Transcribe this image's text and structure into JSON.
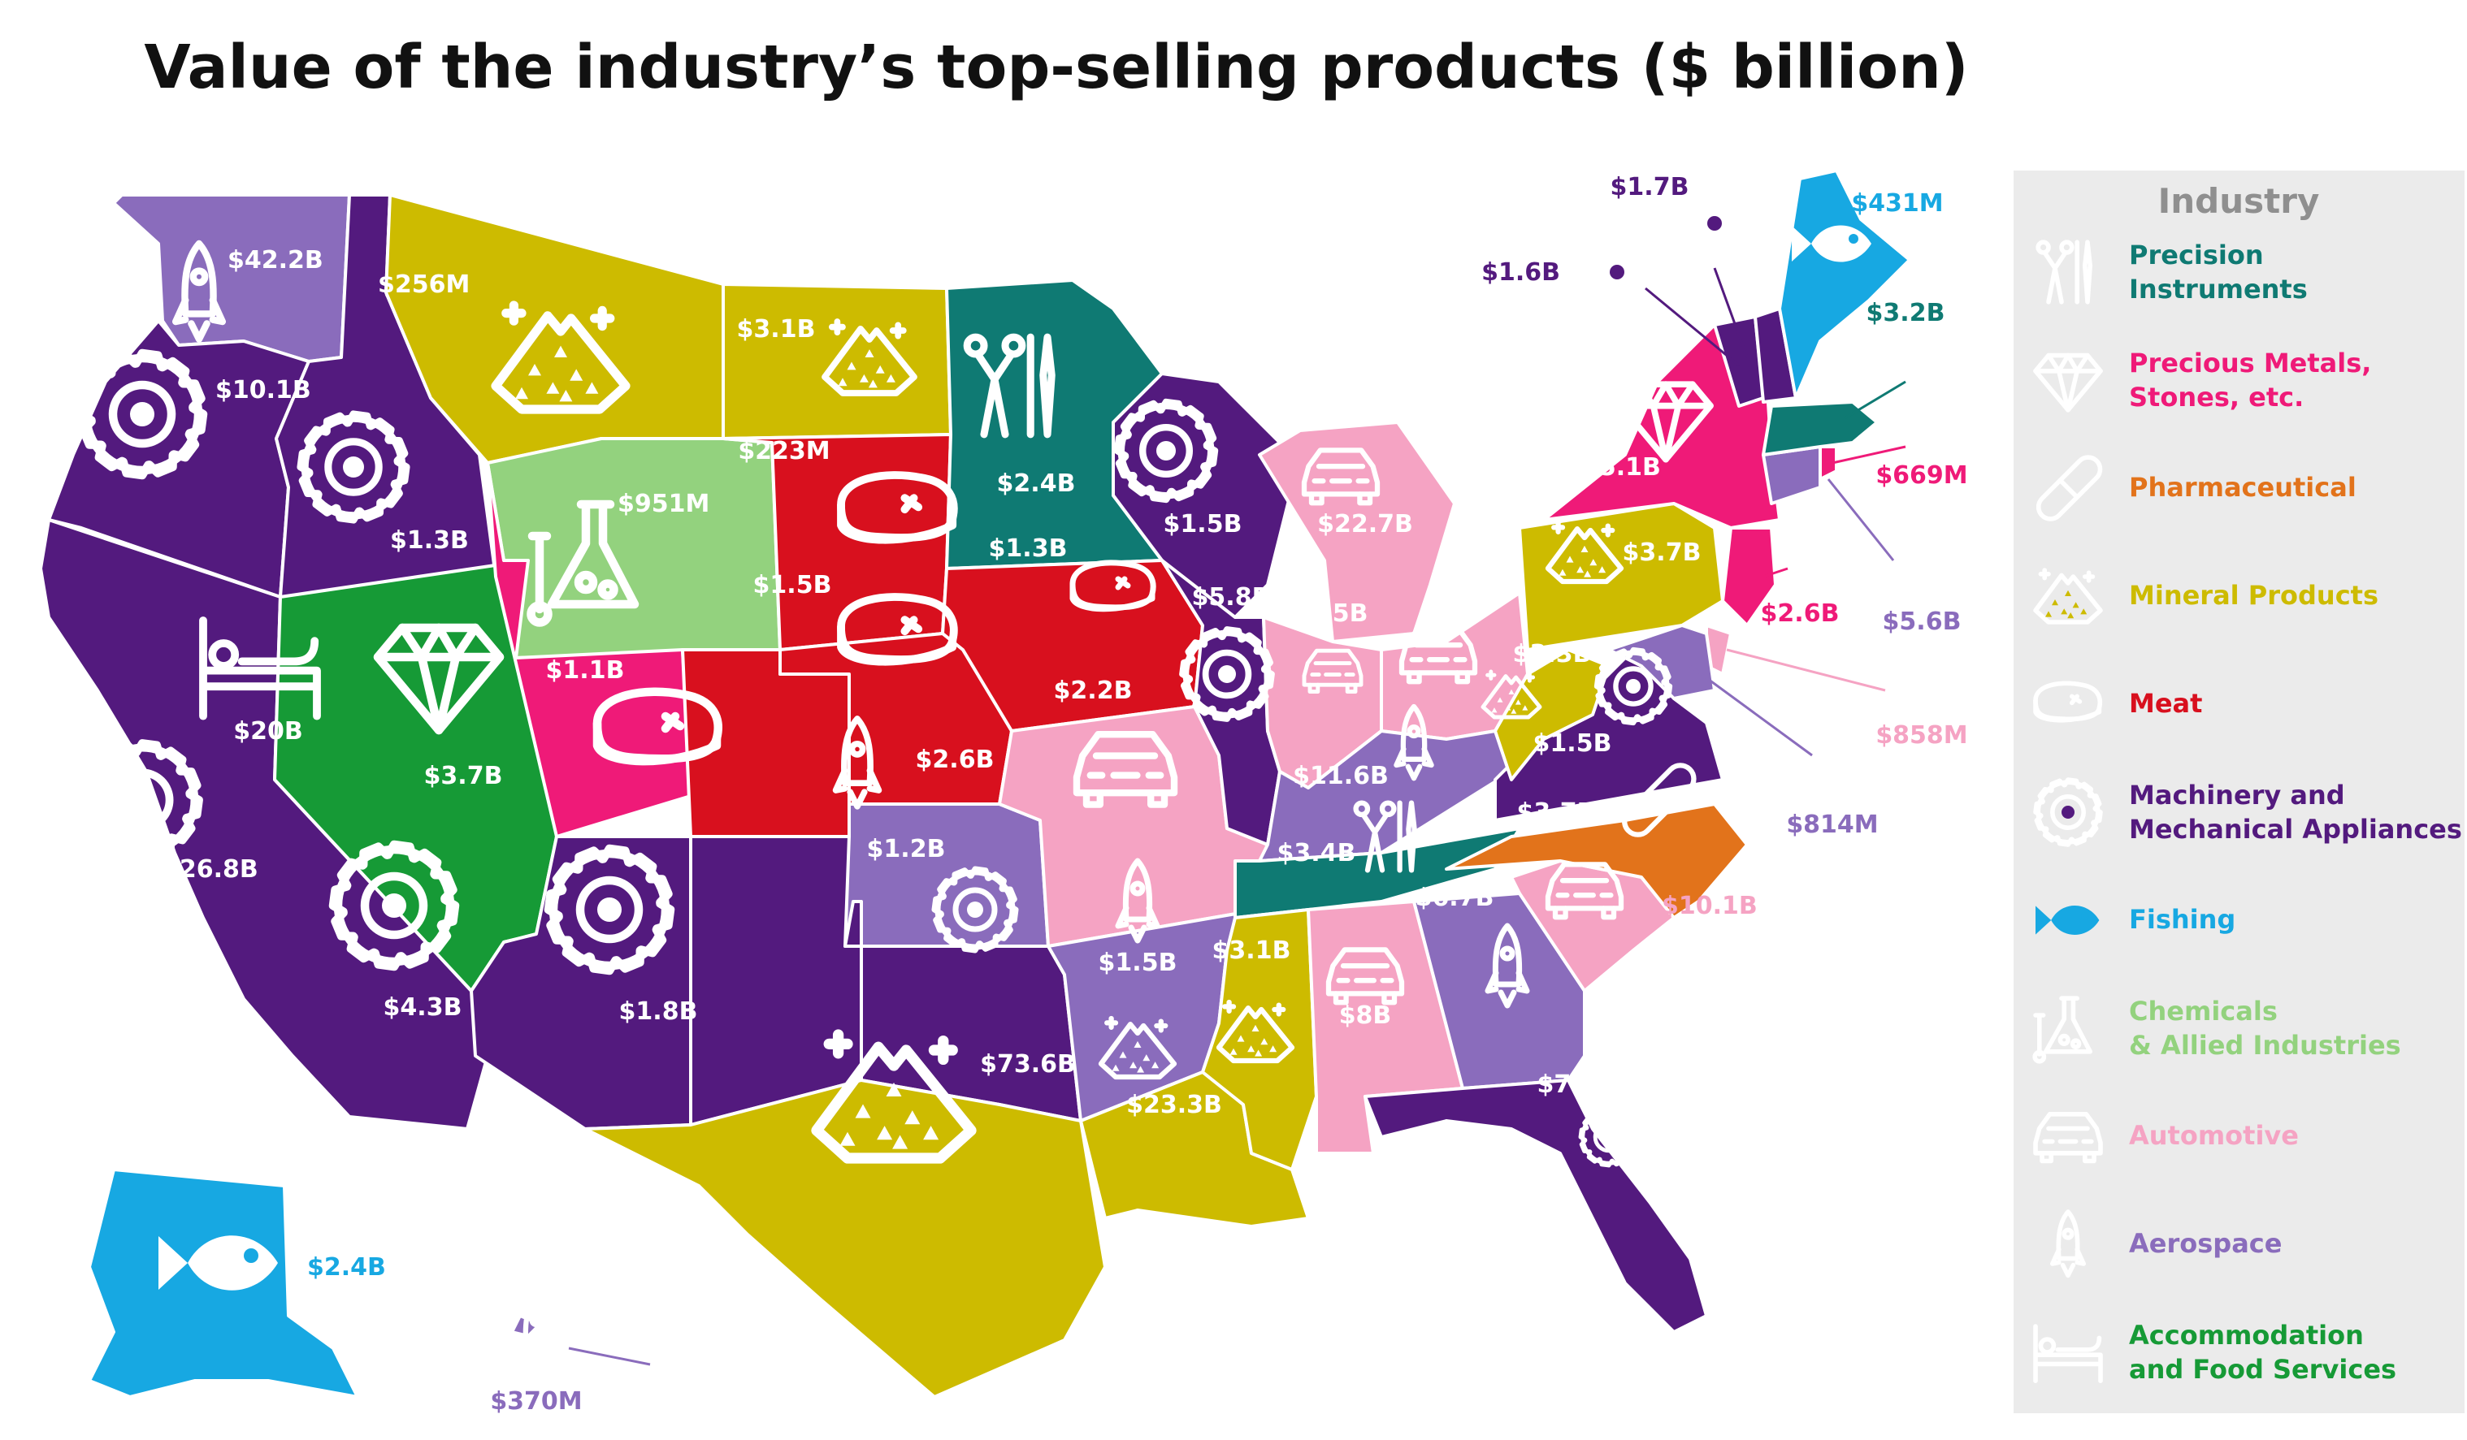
{
  "title": "Value of the industry’s top-selling products ($ billion)",
  "colors": {
    "Precision Instruments": "#0f7a73",
    "Precious Metals, Stones, etc.": "#ef1a78",
    "Pharmaceutical": "#e2731b",
    "Mineral Products": "#cdbb00",
    "Meat": "#d8101e",
    "Machinery and Mechanical Appliances": "#531a7e",
    "Fishing": "#17a8e2",
    "Chemicals & Allied Industries": "#93d27e",
    "Automotive": "#f5a3c3",
    "Aerospace": "#8a6cbc",
    "Accommodation and Food Services": "#169a36"
  },
  "legend": {
    "heading": "Industry",
    "items": [
      {
        "industry": "Precision Instruments",
        "lines": [
          "Precision",
          "Instruments"
        ],
        "icon": "surgical-tools-icon"
      },
      {
        "industry": "Precious Metals, Stones, etc.",
        "lines": [
          "Precious Metals,",
          "Stones, etc."
        ],
        "icon": "diamond-icon"
      },
      {
        "industry": "Pharmaceutical",
        "lines": [
          "Pharmaceutical"
        ],
        "icon": "pill-icon"
      },
      {
        "industry": "Mineral Products",
        "lines": [
          "Mineral Products"
        ],
        "icon": "mineral-pile-icon"
      },
      {
        "industry": "Meat",
        "lines": [
          "Meat"
        ],
        "icon": "steak-icon"
      },
      {
        "industry": "Machinery and Mechanical Appliances",
        "lines": [
          "Machinery and",
          "Mechanical Appliances"
        ],
        "icon": "gear-icon"
      },
      {
        "industry": "Fishing",
        "lines": [
          "Fishing"
        ],
        "icon": "fish-icon"
      },
      {
        "industry": "Chemicals & Allied Industries",
        "lines": [
          "Chemicals",
          "& Allied Industries"
        ],
        "icon": "flask-icon"
      },
      {
        "industry": "Automotive",
        "lines": [
          "Automotive"
        ],
        "icon": "car-icon"
      },
      {
        "industry": "Aerospace",
        "lines": [
          "Aerospace"
        ],
        "icon": "rocket-icon"
      },
      {
        "industry": "Accommodation and Food Services",
        "lines": [
          "Accommodation",
          "and Food Services"
        ],
        "icon": "bed-icon"
      }
    ]
  },
  "states": [
    {
      "id": "wa",
      "industry": "Aerospace",
      "value": "$42.2B",
      "icon": "rocket-icon"
    },
    {
      "id": "or",
      "industry": "Machinery and Mechanical Appliances",
      "value": "$10.1B",
      "icon": "gear-icon"
    },
    {
      "id": "ca",
      "industry": "Machinery and Mechanical Appliances",
      "value": "$26.8B",
      "icon": "gear-icon"
    },
    {
      "id": "id",
      "industry": "Machinery and Mechanical Appliances",
      "value": "$1.3B",
      "icon": "gear-icon"
    },
    {
      "id": "nv",
      "industry": "Accommodation and Food Services",
      "value": "$20B",
      "icon": "bed-icon"
    },
    {
      "id": "mt",
      "industry": "Mineral Products",
      "value": "$256M",
      "icon": "mineral-pile-icon"
    },
    {
      "id": "wy",
      "industry": "Chemicals & Allied Industries",
      "value": "$951M",
      "icon": "flask-icon"
    },
    {
      "id": "ut",
      "industry": "Precious Metals, Stones, etc.",
      "value": "$3.7B",
      "icon": "diamond-icon"
    },
    {
      "id": "az",
      "industry": "Machinery and Mechanical Appliances",
      "value": "$4.3B",
      "icon": "gear-icon"
    },
    {
      "id": "co",
      "industry": "Meat",
      "value": "$1.1B",
      "icon": "steak-icon"
    },
    {
      "id": "nm",
      "industry": "Machinery and Mechanical Appliances",
      "value": "$1.8B",
      "icon": "gear-icon"
    },
    {
      "id": "nd",
      "industry": "Mineral Products",
      "value": "$3.1B",
      "icon": "mineral-pile-icon"
    },
    {
      "id": "sd",
      "industry": "Meat",
      "value": "$223M",
      "icon": "steak-icon"
    },
    {
      "id": "ne",
      "industry": "Meat",
      "value": "$1.5B",
      "icon": "steak-icon"
    },
    {
      "id": "ks",
      "industry": "Aerospace",
      "value": "$2.6B",
      "icon": "rocket-icon"
    },
    {
      "id": "ok",
      "industry": "Machinery and Mechanical Appliances",
      "value": "$1.2B",
      "icon": "gear-icon"
    },
    {
      "id": "tx",
      "industry": "Mineral Products",
      "value": "$73.6B",
      "icon": "mineral-pile-icon"
    },
    {
      "id": "mn",
      "industry": "Precision Instruments",
      "value": "$2.4B",
      "icon": "surgical-tools-icon"
    },
    {
      "id": "ia",
      "industry": "Meat",
      "value": "$1.3B",
      "icon": "steak-icon"
    },
    {
      "id": "mo",
      "industry": "Automotive",
      "value": "$2.2B",
      "icon": "car-icon"
    },
    {
      "id": "ar",
      "industry": "Aerospace",
      "value": "$1.5B",
      "icon": "rocket-icon"
    },
    {
      "id": "la",
      "industry": "Mineral Products",
      "value": "$23.3B",
      "icon": "mineral-pile-icon"
    },
    {
      "id": "wi",
      "industry": "Machinery and Mechanical Appliances",
      "value": "$1.5B",
      "icon": "gear-icon"
    },
    {
      "id": "il",
      "industry": "Machinery and Mechanical Appliances",
      "value": "$5.8B",
      "icon": "gear-icon"
    },
    {
      "id": "mi",
      "industry": "Automotive",
      "value": "$22.7B",
      "icon": "car-icon"
    },
    {
      "id": "in",
      "industry": "Automotive",
      "value": "$7.5B",
      "icon": "car-icon"
    },
    {
      "id": "oh",
      "industry": "Automotive",
      "value": "$6B",
      "icon": "car-icon"
    },
    {
      "id": "ky",
      "industry": "Aerospace",
      "value": "$11.6B",
      "icon": "rocket-icon"
    },
    {
      "id": "tn",
      "industry": "Precision Instruments",
      "value": "$3.4B",
      "icon": "surgical-tools-icon"
    },
    {
      "id": "ms",
      "industry": "Mineral Products",
      "value": "$3.1B",
      "icon": "mineral-pile-icon"
    },
    {
      "id": "al",
      "industry": "Automotive",
      "value": "$8B",
      "icon": "car-icon"
    },
    {
      "id": "ga",
      "industry": "Aerospace",
      "value": "$6.7B",
      "icon": "rocket-icon"
    },
    {
      "id": "fl",
      "industry": "Machinery and Mechanical Appliances",
      "value": "$7.6B",
      "icon": "gear-icon"
    },
    {
      "id": "sc",
      "industry": "Automotive",
      "value": "$10.1B",
      "icon": "car-icon"
    },
    {
      "id": "nc",
      "industry": "Pharmaceutical",
      "value": "$3.7B",
      "icon": "pill-icon"
    },
    {
      "id": "va",
      "industry": "Machinery and Mechanical Appliances",
      "value": "$1.5B",
      "icon": "gear-icon"
    },
    {
      "id": "wv",
      "industry": "Mineral Products",
      "value": "$3.3B",
      "icon": "mineral-pile-icon"
    },
    {
      "id": "pa",
      "industry": "Mineral Products",
      "value": "$3.7B",
      "icon": "mineral-pile-icon"
    },
    {
      "id": "ny",
      "industry": "Precious Metals, Stones, etc.",
      "value": "$25.1B",
      "icon": "diamond-icon"
    },
    {
      "id": "nj",
      "industry": "Precious Metals, Stones, etc.",
      "value": "$2.6B",
      "icon": "diamond-icon"
    },
    {
      "id": "de",
      "industry": "Automotive",
      "value": "$858M",
      "icon": "car-icon"
    },
    {
      "id": "md",
      "industry": "Aerospace",
      "value": "$814M",
      "icon": "rocket-icon"
    },
    {
      "id": "ct",
      "industry": "Aerospace",
      "value": "$5.6B",
      "icon": "rocket-icon"
    },
    {
      "id": "ri",
      "industry": "Precious Metals, Stones, etc.",
      "value": "$669M",
      "icon": "diamond-icon"
    },
    {
      "id": "ma",
      "industry": "Precision Instruments",
      "value": "$3.2B",
      "icon": "surgical-tools-icon"
    },
    {
      "id": "vt",
      "industry": "Machinery and Mechanical Appliances",
      "value": "$1.6B",
      "icon": "gear-icon"
    },
    {
      "id": "nh",
      "industry": "Machinery and Mechanical Appliances",
      "value": "$1.7B",
      "icon": "gear-icon"
    },
    {
      "id": "me",
      "industry": "Fishing",
      "value": "$431M",
      "icon": "fish-icon"
    },
    {
      "id": "ak",
      "industry": "Fishing",
      "value": "$2.4B",
      "icon": "fish-icon"
    },
    {
      "id": "hi",
      "industry": "Aerospace",
      "value": "$370M",
      "icon": "rocket-icon"
    }
  ]
}
